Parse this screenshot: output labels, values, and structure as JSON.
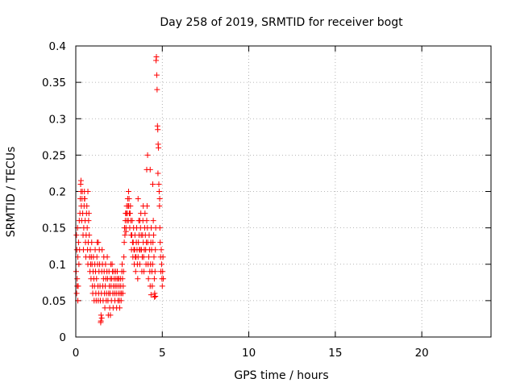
{
  "chart_data": {
    "type": "scatter",
    "title": "Day 258 of 2019, SRMTID for receiver bogt",
    "xlabel": "GPS time / hours",
    "ylabel": "SRMTID / TECUs",
    "xlim": [
      0,
      24
    ],
    "ylim": [
      0,
      0.4
    ],
    "xticks": [
      0,
      5,
      10,
      15,
      20
    ],
    "yticks": [
      0,
      0.05,
      0.1,
      0.15,
      0.2,
      0.25,
      0.3,
      0.35,
      0.4
    ],
    "xtick_labels": [
      "0",
      "5",
      "10",
      "15",
      "20"
    ],
    "ytick_labels": [
      "0",
      "0.05",
      "0.1",
      "0.15",
      "0.2",
      "0.25",
      "0.3",
      "0.35",
      "0.4"
    ],
    "grid": true,
    "marker": "+",
    "color": "#ff0000",
    "series": [
      {
        "name": "SRMTID",
        "points": [
          [
            0.02,
            0.09
          ],
          [
            0.04,
            0.14
          ],
          [
            0.06,
            0.12
          ],
          [
            0.08,
            0.08
          ],
          [
            0.1,
            0.15
          ],
          [
            0.12,
            0.11
          ],
          [
            0.14,
            0.07
          ],
          [
            0.16,
            0.13
          ],
          [
            0.18,
            0.1
          ],
          [
            0.2,
            0.16
          ],
          [
            0.22,
            0.12
          ],
          [
            0.24,
            0.17
          ],
          [
            0.26,
            0.19
          ],
          [
            0.28,
            0.21
          ],
          [
            0.3,
            0.2
          ],
          [
            0.32,
            0.18
          ],
          [
            0.34,
            0.16
          ],
          [
            0.36,
            0.19
          ],
          [
            0.38,
            0.2
          ],
          [
            0.4,
            0.17
          ],
          [
            0.42,
            0.14
          ],
          [
            0.44,
            0.12
          ],
          [
            0.46,
            0.15
          ],
          [
            0.48,
            0.18
          ],
          [
            0.5,
            0.2
          ],
          [
            0.52,
            0.19
          ],
          [
            0.54,
            0.16
          ],
          [
            0.56,
            0.13
          ],
          [
            0.58,
            0.11
          ],
          [
            0.6,
            0.14
          ],
          [
            0.62,
            0.17
          ],
          [
            0.64,
            0.18
          ],
          [
            0.66,
            0.15
          ],
          [
            0.68,
            0.12
          ],
          [
            0.7,
            0.1
          ],
          [
            0.72,
            0.13
          ],
          [
            0.74,
            0.16
          ],
          [
            0.76,
            0.17
          ],
          [
            0.78,
            0.14
          ],
          [
            0.8,
            0.11
          ],
          [
            0.82,
            0.09
          ],
          [
            0.84,
            0.12
          ],
          [
            0.86,
            0.1
          ],
          [
            0.88,
            0.08
          ],
          [
            0.9,
            0.11
          ],
          [
            0.92,
            0.13
          ],
          [
            0.94,
            0.1
          ],
          [
            0.96,
            0.07
          ],
          [
            0.98,
            0.06
          ],
          [
            1.0,
            0.09
          ],
          [
            1.02,
            0.11
          ],
          [
            1.04,
            0.08
          ],
          [
            1.06,
            0.05
          ],
          [
            1.08,
            0.07
          ],
          [
            1.1,
            0.1
          ],
          [
            1.12,
            0.12
          ],
          [
            1.14,
            0.09
          ],
          [
            1.16,
            0.06
          ],
          [
            1.18,
            0.05
          ],
          [
            1.2,
            0.08
          ],
          [
            1.22,
            0.11
          ],
          [
            1.24,
            0.13
          ],
          [
            1.26,
            0.1
          ],
          [
            1.28,
            0.07
          ],
          [
            1.3,
            0.05
          ],
          [
            1.32,
            0.06
          ],
          [
            1.34,
            0.09
          ],
          [
            1.36,
            0.12
          ],
          [
            1.38,
            0.1
          ],
          [
            1.4,
            0.07
          ],
          [
            1.42,
            0.05
          ],
          [
            1.44,
            0.02
          ],
          [
            1.46,
            0.03
          ],
          [
            1.48,
            0.06
          ],
          [
            1.5,
            0.09
          ],
          [
            1.52,
            0.12
          ],
          [
            1.54,
            0.1
          ],
          [
            1.56,
            0.07
          ],
          [
            1.58,
            0.05
          ],
          [
            1.6,
            0.08
          ],
          [
            1.62,
            0.11
          ],
          [
            1.64,
            0.09
          ],
          [
            1.66,
            0.06
          ],
          [
            1.68,
            0.04
          ],
          [
            1.7,
            0.07
          ],
          [
            1.72,
            0.1
          ],
          [
            1.74,
            0.08
          ],
          [
            1.76,
            0.05
          ],
          [
            1.78,
            0.06
          ],
          [
            1.8,
            0.09
          ],
          [
            1.82,
            0.11
          ],
          [
            1.84,
            0.08
          ],
          [
            1.86,
            0.05
          ],
          [
            1.88,
            0.03
          ],
          [
            1.9,
            0.06
          ],
          [
            1.92,
            0.09
          ],
          [
            1.94,
            0.07
          ],
          [
            1.96,
            0.04
          ],
          [
            1.98,
            0.06
          ],
          [
            2.0,
            0.08
          ],
          [
            2.02,
            0.1
          ],
          [
            2.04,
            0.07
          ],
          [
            2.06,
            0.05
          ],
          [
            2.08,
            0.08
          ],
          [
            2.1,
            0.1
          ],
          [
            2.12,
            0.09
          ],
          [
            2.14,
            0.06
          ],
          [
            2.16,
            0.04
          ],
          [
            2.18,
            0.07
          ],
          [
            2.2,
            0.09
          ],
          [
            2.22,
            0.08
          ],
          [
            2.24,
            0.06
          ],
          [
            2.26,
            0.05
          ],
          [
            2.28,
            0.07
          ],
          [
            2.3,
            0.09
          ],
          [
            2.32,
            0.08
          ],
          [
            2.34,
            0.06
          ],
          [
            2.36,
            0.04
          ],
          [
            2.38,
            0.07
          ],
          [
            2.4,
            0.09
          ],
          [
            2.42,
            0.08
          ],
          [
            2.44,
            0.05
          ],
          [
            2.46,
            0.06
          ],
          [
            2.48,
            0.08
          ],
          [
            2.5,
            0.07
          ],
          [
            2.52,
            0.05
          ],
          [
            2.54,
            0.04
          ],
          [
            2.56,
            0.06
          ],
          [
            2.58,
            0.08
          ],
          [
            2.6,
            0.07
          ],
          [
            2.62,
            0.05
          ],
          [
            2.64,
            0.06
          ],
          [
            2.66,
            0.09
          ],
          [
            2.68,
            0.1
          ],
          [
            2.7,
            0.08
          ],
          [
            2.72,
            0.06
          ],
          [
            2.74,
            0.07
          ],
          [
            2.76,
            0.09
          ],
          [
            2.78,
            0.11
          ],
          [
            2.8,
            0.13
          ],
          [
            2.82,
            0.15
          ],
          [
            2.84,
            0.14
          ],
          [
            2.86,
            0.16
          ],
          [
            2.88,
            0.17
          ],
          [
            2.9,
            0.15
          ],
          [
            2.92,
            0.17
          ],
          [
            2.94,
            0.18
          ],
          [
            2.96,
            0.16
          ],
          [
            2.98,
            0.17
          ],
          [
            3.0,
            0.19
          ],
          [
            3.02,
            0.18
          ],
          [
            3.04,
            0.16
          ],
          [
            3.06,
            0.18
          ],
          [
            3.08,
            0.19
          ],
          [
            3.1,
            0.17
          ],
          [
            3.12,
            0.15
          ],
          [
            3.14,
            0.17
          ],
          [
            3.16,
            0.18
          ],
          [
            3.18,
            0.16
          ],
          [
            3.2,
            0.14
          ],
          [
            3.22,
            0.12
          ],
          [
            3.24,
            0.14
          ],
          [
            3.26,
            0.16
          ],
          [
            3.28,
            0.13
          ],
          [
            3.3,
            0.11
          ],
          [
            3.32,
            0.13
          ],
          [
            3.34,
            0.15
          ],
          [
            3.36,
            0.12
          ],
          [
            3.38,
            0.1
          ],
          [
            3.4,
            0.12
          ],
          [
            3.42,
            0.14
          ],
          [
            3.44,
            0.11
          ],
          [
            3.46,
            0.09
          ],
          [
            3.48,
            0.11
          ],
          [
            3.5,
            0.13
          ],
          [
            3.52,
            0.15
          ],
          [
            3.54,
            0.12
          ],
          [
            3.56,
            0.1
          ],
          [
            3.58,
            0.08
          ],
          [
            3.6,
            0.11
          ],
          [
            3.62,
            0.13
          ],
          [
            3.64,
            0.16
          ],
          [
            3.66,
            0.14
          ],
          [
            3.68,
            0.12
          ],
          [
            3.7,
            0.1
          ],
          [
            3.72,
            0.12
          ],
          [
            3.74,
            0.15
          ],
          [
            3.76,
            0.17
          ],
          [
            3.78,
            0.14
          ],
          [
            3.8,
            0.12
          ],
          [
            3.82,
            0.09
          ],
          [
            3.84,
            0.11
          ],
          [
            3.86,
            0.14
          ],
          [
            3.88,
            0.16
          ],
          [
            3.9,
            0.13
          ],
          [
            3.92,
            0.11
          ],
          [
            3.94,
            0.09
          ],
          [
            3.96,
            0.12
          ],
          [
            3.98,
            0.15
          ],
          [
            4.0,
            0.17
          ],
          [
            4.02,
            0.14
          ],
          [
            4.04,
            0.12
          ],
          [
            4.06,
            0.1
          ],
          [
            4.08,
            0.13
          ],
          [
            4.1,
            0.16
          ],
          [
            4.12,
            0.18
          ],
          [
            4.14,
            0.15
          ],
          [
            4.16,
            0.13
          ],
          [
            4.18,
            0.1
          ],
          [
            4.2,
            0.08
          ],
          [
            4.22,
            0.11
          ],
          [
            4.24,
            0.14
          ],
          [
            4.26,
            0.12
          ],
          [
            4.28,
            0.09
          ],
          [
            4.3,
            0.07
          ],
          [
            4.32,
            0.1
          ],
          [
            4.34,
            0.13
          ],
          [
            4.36,
            0.15
          ],
          [
            4.38,
            0.12
          ],
          [
            4.4,
            0.09
          ],
          [
            4.42,
            0.07
          ],
          [
            4.44,
            0.1
          ],
          [
            4.46,
            0.13
          ],
          [
            4.48,
            0.16
          ],
          [
            4.5,
            0.14
          ],
          [
            4.52,
            0.11
          ],
          [
            4.54,
            0.08
          ],
          [
            4.56,
            0.06
          ],
          [
            4.58,
            0.09
          ],
          [
            4.6,
            0.12
          ],
          [
            4.62,
            0.15
          ],
          [
            4.64,
            0.38
          ],
          [
            4.66,
            0.385
          ],
          [
            4.68,
            0.36
          ],
          [
            4.7,
            0.34
          ],
          [
            4.72,
            0.29
          ],
          [
            4.74,
            0.285
          ],
          [
            4.76,
            0.265
          ],
          [
            4.78,
            0.26
          ],
          [
            4.8,
            0.21
          ],
          [
            4.82,
            0.2
          ],
          [
            4.84,
            0.18
          ],
          [
            4.86,
            0.15
          ],
          [
            4.88,
            0.13
          ],
          [
            4.9,
            0.11
          ],
          [
            4.92,
            0.09
          ],
          [
            4.94,
            0.12
          ],
          [
            4.96,
            0.1
          ],
          [
            4.98,
            0.08
          ],
          [
            5.0,
            0.07
          ],
          [
            5.02,
            0.09
          ],
          [
            5.04,
            0.11
          ],
          [
            5.06,
            0.08
          ],
          [
            0.3,
            0.215
          ],
          [
            0.5,
            0.19
          ],
          [
            0.7,
            0.2
          ],
          [
            1.3,
            0.13
          ],
          [
            3.05,
            0.2
          ],
          [
            3.6,
            0.19
          ],
          [
            4.1,
            0.23
          ],
          [
            4.15,
            0.25
          ],
          [
            4.45,
            0.21
          ],
          [
            4.3,
            0.23
          ],
          [
            3.9,
            0.18
          ],
          [
            4.75,
            0.225
          ],
          [
            4.85,
            0.19
          ],
          [
            3.7,
            0.16
          ],
          [
            2.9,
            0.145
          ],
          [
            4.55,
            0.055
          ],
          [
            4.6,
            0.056
          ],
          [
            4.35,
            0.058
          ],
          [
            1.45,
            0.022
          ],
          [
            1.5,
            0.026
          ],
          [
            2.0,
            0.03
          ],
          [
            0.05,
            0.06
          ],
          [
            0.08,
            0.07
          ],
          [
            0.12,
            0.05
          ]
        ]
      }
    ]
  }
}
